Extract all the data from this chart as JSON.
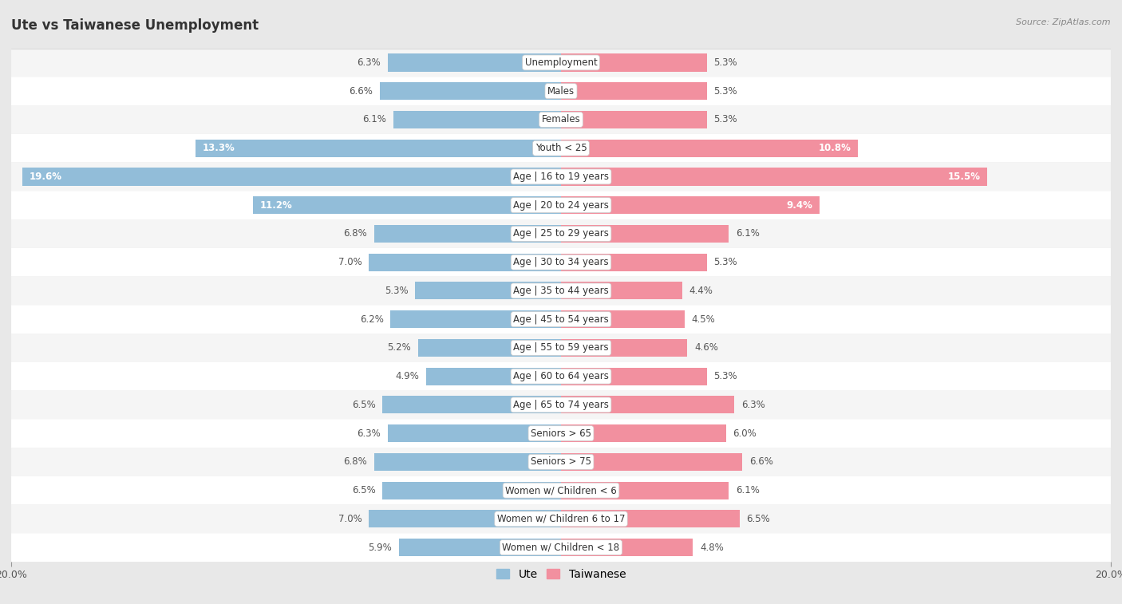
{
  "title": "Ute vs Taiwanese Unemployment",
  "source": "Source: ZipAtlas.com",
  "categories": [
    "Unemployment",
    "Males",
    "Females",
    "Youth < 25",
    "Age | 16 to 19 years",
    "Age | 20 to 24 years",
    "Age | 25 to 29 years",
    "Age | 30 to 34 years",
    "Age | 35 to 44 years",
    "Age | 45 to 54 years",
    "Age | 55 to 59 years",
    "Age | 60 to 64 years",
    "Age | 65 to 74 years",
    "Seniors > 65",
    "Seniors > 75",
    "Women w/ Children < 6",
    "Women w/ Children 6 to 17",
    "Women w/ Children < 18"
  ],
  "ute_values": [
    6.3,
    6.6,
    6.1,
    13.3,
    19.6,
    11.2,
    6.8,
    7.0,
    5.3,
    6.2,
    5.2,
    4.9,
    6.5,
    6.3,
    6.8,
    6.5,
    7.0,
    5.9
  ],
  "taiwanese_values": [
    5.3,
    5.3,
    5.3,
    10.8,
    15.5,
    9.4,
    6.1,
    5.3,
    4.4,
    4.5,
    4.6,
    5.3,
    6.3,
    6.0,
    6.6,
    6.1,
    6.5,
    4.8
  ],
  "ute_color": "#92bdd9",
  "taiwanese_color": "#f2909f",
  "ute_color_dark": "#5a9cc5",
  "taiwanese_color_dark": "#e8607a",
  "max_val": 20.0,
  "bg_color": "#e8e8e8",
  "row_bg_even": "#f5f5f5",
  "row_bg_odd": "#ffffff",
  "bar_height": 0.62,
  "label_fontsize": 8.5,
  "cat_fontsize": 8.5,
  "title_fontsize": 12,
  "legend_ute": "Ute",
  "legend_taiwanese": "Taiwanese",
  "ute_threshold": 8.5,
  "tai_threshold": 8.5
}
